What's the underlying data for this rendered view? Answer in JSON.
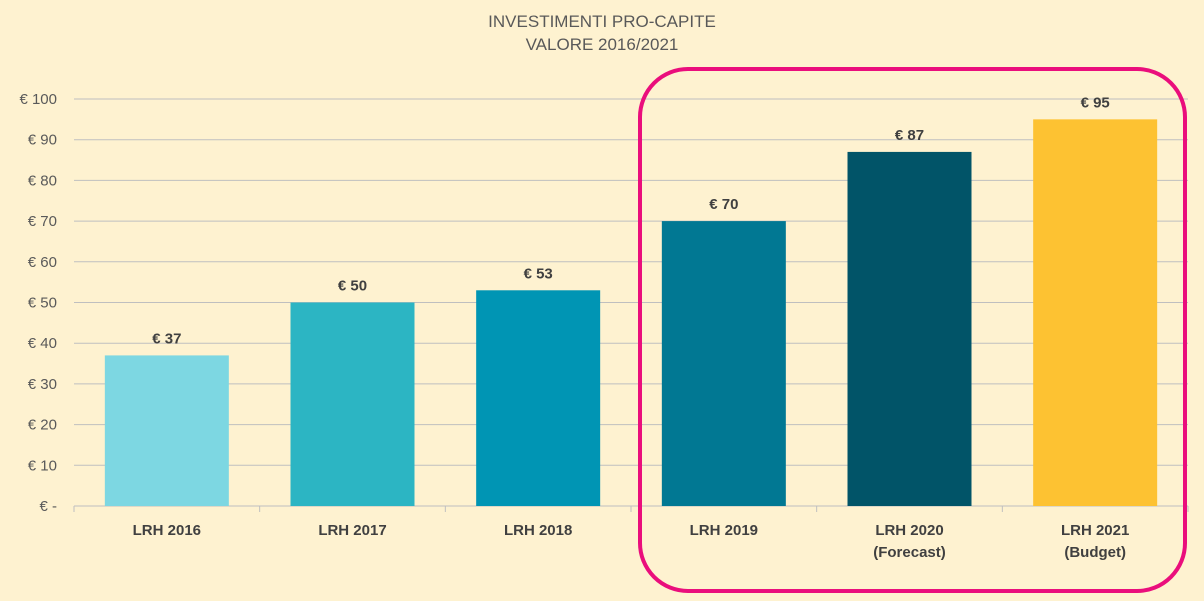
{
  "chart_data": {
    "type": "bar",
    "title": [
      "INVESTIMENTI PRO-CAPITE",
      "VALORE 2016/2021"
    ],
    "categories": [
      [
        "LRH 2016"
      ],
      [
        "LRH 2017"
      ],
      [
        "LRH 2018"
      ],
      [
        "LRH 2019"
      ],
      [
        "LRH 2020",
        "(Forecast)"
      ],
      [
        "LRH 2021",
        "(Budget)"
      ]
    ],
    "values": [
      37,
      50,
      53,
      70,
      87,
      95
    ],
    "data_labels": [
      "€ 37",
      "€ 50",
      "€ 53",
      "€ 70",
      "€ 87",
      "€ 95"
    ],
    "bar_colors": [
      "#7DD7E2",
      "#2CB5C3",
      "#0095B4",
      "#017893",
      "#015468",
      "#FDC232"
    ],
    "ylim": [
      0,
      100
    ],
    "yticks": [
      0,
      10,
      20,
      30,
      40,
      50,
      60,
      70,
      80,
      90,
      100
    ],
    "ytick_labels": [
      "€ -",
      "€ 10",
      "€ 20",
      "€ 30",
      "€ 40",
      "€ 50",
      "€ 60",
      "€ 70",
      "€ 80",
      "€ 90",
      "€ 100"
    ],
    "grid": true,
    "legend": "none",
    "xlabel": "",
    "ylabel": "",
    "highlight": {
      "categories": [
        "LRH 2019",
        "LRH 2020",
        "LRH 2021"
      ],
      "color": "#EA0E7C"
    },
    "background_color": "#FEF2D0"
  }
}
